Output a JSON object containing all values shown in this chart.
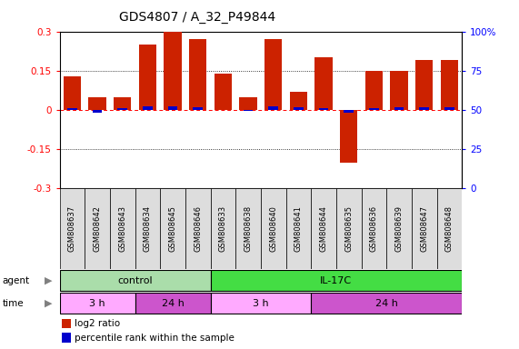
{
  "title": "GDS4807 / A_32_P49844",
  "samples": [
    "GSM808637",
    "GSM808642",
    "GSM808643",
    "GSM808634",
    "GSM808645",
    "GSM808646",
    "GSM808633",
    "GSM808638",
    "GSM808640",
    "GSM808641",
    "GSM808644",
    "GSM808635",
    "GSM808636",
    "GSM808639",
    "GSM808647",
    "GSM808648"
  ],
  "log2_values": [
    0.13,
    0.05,
    0.05,
    0.25,
    0.3,
    0.27,
    0.14,
    0.05,
    0.27,
    0.07,
    0.2,
    -0.2,
    0.15,
    0.15,
    0.19,
    0.19
  ],
  "pct_values": [
    52,
    46,
    52,
    55,
    55,
    54,
    50,
    49,
    55,
    53,
    52,
    46,
    52,
    53,
    54,
    53
  ],
  "ylim": [
    -0.3,
    0.3
  ],
  "bar_color_red": "#cc2200",
  "bar_color_blue": "#0000cc",
  "color_control": "#aaddaa",
  "color_il17c": "#44dd44",
  "color_3h": "#ffaaff",
  "color_24h": "#cc55cc",
  "label_bg": "#dddddd",
  "agent_control_count": 6,
  "time_3h_1_count": 3,
  "time_24h_1_count": 3,
  "time_3h_2_count": 4,
  "time_24h_2_count": 6
}
